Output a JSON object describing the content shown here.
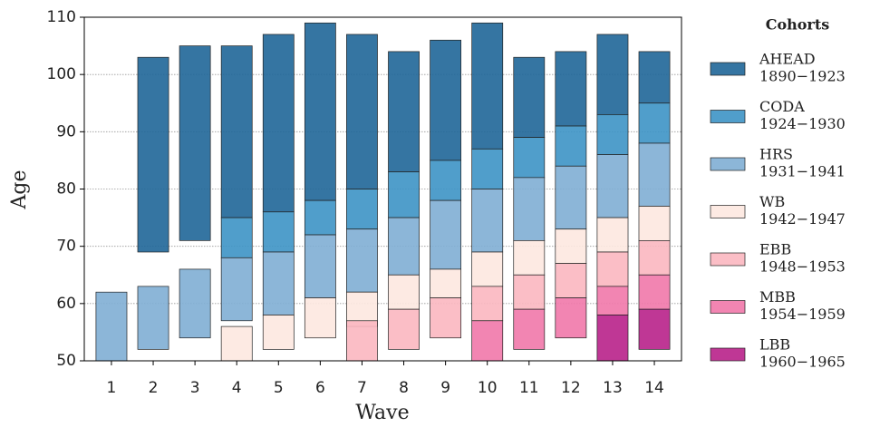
{
  "chart_data": {
    "type": "range-bar",
    "x_label": "Wave",
    "y_label": "Age",
    "legend_title": "Cohorts",
    "legend_position": "right",
    "categories": [
      "1",
      "2",
      "3",
      "4",
      "5",
      "6",
      "7",
      "8",
      "9",
      "10",
      "11",
      "12",
      "13",
      "14"
    ],
    "ylim": [
      50,
      110
    ],
    "yticks": [
      50,
      60,
      70,
      80,
      90,
      100,
      110
    ],
    "grid": true,
    "series": [
      {
        "name": "AHEAD",
        "period": "1890−1923",
        "color": "#1f6698",
        "low": [
          null,
          69,
          71,
          75,
          76,
          78,
          80,
          83,
          85,
          87,
          89,
          91,
          93,
          95
        ],
        "high": [
          null,
          103,
          105,
          105,
          107,
          109,
          107,
          104,
          106,
          109,
          103,
          104,
          107,
          104
        ]
      },
      {
        "name": "CODA",
        "period": "1924−1930",
        "color": "#3d93c5",
        "low": [
          null,
          null,
          null,
          68,
          69,
          72,
          73,
          75,
          78,
          80,
          82,
          84,
          86,
          88
        ],
        "high": [
          null,
          null,
          null,
          75,
          76,
          78,
          80,
          83,
          85,
          87,
          89,
          91,
          93,
          95
        ]
      },
      {
        "name": "HRS",
        "period": "1931−1941",
        "color": "#80aed4",
        "low": [
          50,
          52,
          54,
          57,
          58,
          61,
          62,
          65,
          66,
          69,
          71,
          73,
          75,
          77
        ],
        "high": [
          62,
          63,
          66,
          68,
          69,
          72,
          73,
          75,
          78,
          80,
          82,
          84,
          86,
          88
        ]
      },
      {
        "name": "WB",
        "period": "1942−1947",
        "color": "#fde8e0",
        "low": [
          null,
          null,
          null,
          50,
          52,
          54,
          56,
          59,
          61,
          63,
          65,
          67,
          69,
          71
        ],
        "high": [
          null,
          null,
          null,
          56,
          58,
          61,
          62,
          65,
          66,
          69,
          71,
          73,
          75,
          77
        ]
      },
      {
        "name": "EBB",
        "period": "1948−1953",
        "color": "#fbb7c0",
        "low": [
          null,
          null,
          null,
          null,
          null,
          null,
          50,
          52,
          54,
          57,
          59,
          61,
          63,
          65
        ],
        "high": [
          null,
          null,
          null,
          null,
          null,
          null,
          57,
          59,
          61,
          63,
          65,
          67,
          69,
          71
        ]
      },
      {
        "name": "MBB",
        "period": "1954−1959",
        "color": "#f178aa",
        "low": [
          null,
          null,
          null,
          null,
          null,
          null,
          null,
          null,
          null,
          50,
          52,
          54,
          58,
          59
        ],
        "high": [
          null,
          null,
          null,
          null,
          null,
          null,
          null,
          null,
          null,
          57,
          59,
          61,
          63,
          65
        ]
      },
      {
        "name": "LBB",
        "period": "1960−1965",
        "color": "#b8218a",
        "low": [
          null,
          null,
          null,
          null,
          null,
          null,
          null,
          null,
          null,
          null,
          null,
          null,
          50,
          52
        ],
        "high": [
          null,
          null,
          null,
          null,
          null,
          null,
          null,
          null,
          null,
          null,
          null,
          null,
          58,
          59
        ]
      }
    ]
  }
}
